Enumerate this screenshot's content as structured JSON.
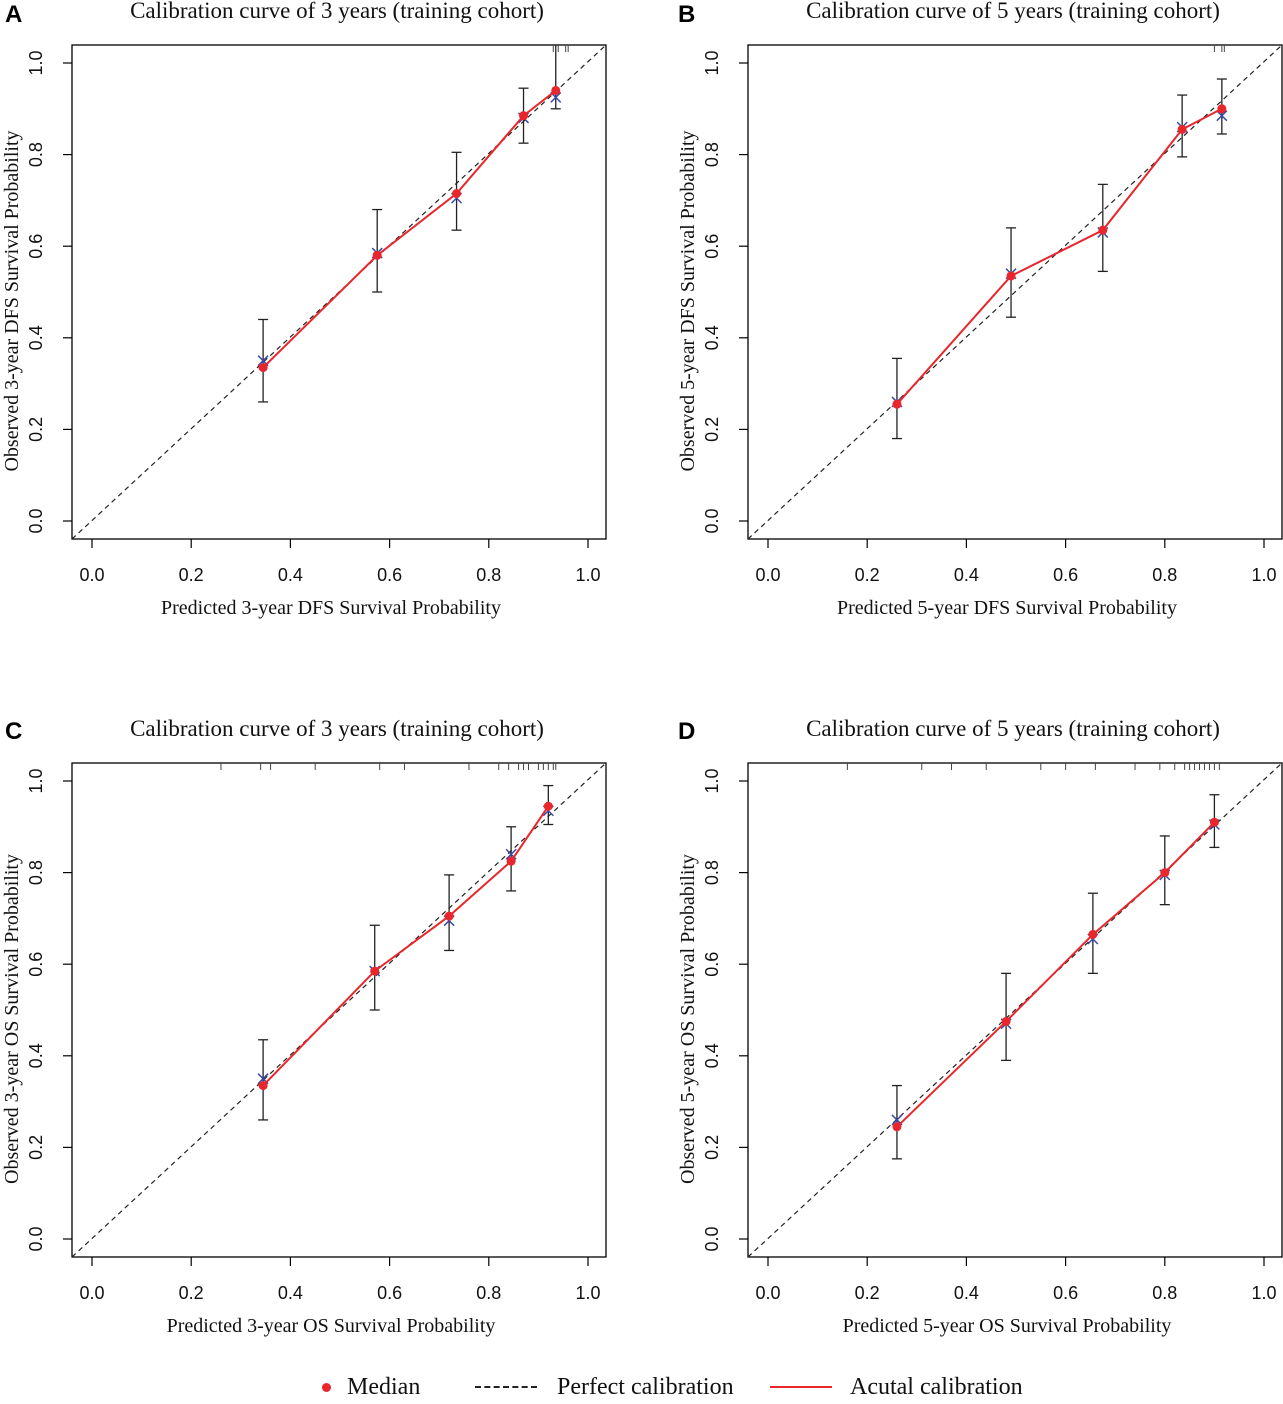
{
  "legend": {
    "median": "Median",
    "perfect": "Perfect calibration",
    "actual": "Acutal calibration"
  },
  "colors": {
    "actual": "#e8262b",
    "median": "#e8262b",
    "cross": "#3b4aa8",
    "perfect": "#222222",
    "errorbar": "#222222"
  },
  "chart_data": [
    {
      "panel": "A",
      "type": "scatter",
      "title": "Calibration curve of 3 years (training cohort)",
      "xlabel": "Predicted 3-year DFS Survival Probability",
      "ylabel": "Observed 3-year DFS Survival Probability",
      "xlim": [
        0,
        1
      ],
      "ylim": [
        0,
        1
      ],
      "xticks": [
        "0.0",
        "0.2",
        "0.4",
        "0.6",
        "0.8",
        "1.0"
      ],
      "yticks": [
        "0.0",
        "0.2",
        "0.4",
        "0.6",
        "0.8",
        "1.0"
      ],
      "series": [
        {
          "name": "Median",
          "x": [
            0.345,
            0.575,
            0.735,
            0.87,
            0.935
          ],
          "y": [
            0.335,
            0.58,
            0.715,
            0.885,
            0.94
          ]
        },
        {
          "name": "Observed (x)",
          "x": [
            0.345,
            0.575,
            0.735,
            0.87,
            0.935
          ],
          "y": [
            0.35,
            0.585,
            0.705,
            0.88,
            0.925
          ]
        },
        {
          "name": "Error bars",
          "low": [
            0.26,
            0.5,
            0.635,
            0.825,
            0.9
          ],
          "high": [
            0.44,
            0.68,
            0.805,
            0.945,
            1.05
          ]
        }
      ],
      "rug": [
        0.93,
        0.94,
        0.955,
        0.96
      ]
    },
    {
      "panel": "B",
      "type": "scatter",
      "title": "Calibration curve of 5 years (training cohort)",
      "xlabel": "Predicted 5-year DFS Survival Probability",
      "ylabel": "Observed 5-year DFS Survival Probability",
      "xlim": [
        0,
        1
      ],
      "ylim": [
        0,
        1
      ],
      "xticks": [
        "0.0",
        "0.2",
        "0.4",
        "0.6",
        "0.8",
        "1.0"
      ],
      "yticks": [
        "0.0",
        "0.2",
        "0.4",
        "0.6",
        "0.8",
        "1.0"
      ],
      "series": [
        {
          "name": "Median",
          "x": [
            0.26,
            0.49,
            0.675,
            0.835,
            0.915
          ],
          "y": [
            0.255,
            0.535,
            0.635,
            0.855,
            0.9
          ]
        },
        {
          "name": "Observed (x)",
          "x": [
            0.26,
            0.49,
            0.675,
            0.835,
            0.915
          ],
          "y": [
            0.26,
            0.54,
            0.63,
            0.86,
            0.885
          ]
        },
        {
          "name": "Error bars",
          "low": [
            0.18,
            0.445,
            0.545,
            0.795,
            0.845
          ],
          "high": [
            0.355,
            0.64,
            0.735,
            0.93,
            0.965
          ]
        }
      ],
      "rug": [
        0.9,
        0.915,
        0.92
      ]
    },
    {
      "panel": "C",
      "type": "scatter",
      "title": "Calibration curve of 3 years (training cohort)",
      "xlabel": "Predicted 3-year OS Survival Probability",
      "ylabel": "Observed 3-year OS Survival Probability",
      "xlim": [
        0,
        1
      ],
      "ylim": [
        0,
        1
      ],
      "xticks": [
        "0.0",
        "0.2",
        "0.4",
        "0.6",
        "0.8",
        "1.0"
      ],
      "yticks": [
        "0.0",
        "0.2",
        "0.4",
        "0.6",
        "0.8",
        "1.0"
      ],
      "series": [
        {
          "name": "Median",
          "x": [
            0.345,
            0.57,
            0.72,
            0.845,
            0.92
          ],
          "y": [
            0.335,
            0.585,
            0.705,
            0.825,
            0.945
          ]
        },
        {
          "name": "Observed (x)",
          "x": [
            0.345,
            0.57,
            0.72,
            0.845,
            0.92
          ],
          "y": [
            0.35,
            0.585,
            0.695,
            0.84,
            0.935
          ]
        },
        {
          "name": "Error bars",
          "low": [
            0.26,
            0.5,
            0.63,
            0.76,
            0.905
          ],
          "high": [
            0.435,
            0.685,
            0.795,
            0.9,
            0.99
          ]
        }
      ],
      "rug": [
        0.26,
        0.34,
        0.36,
        0.45,
        0.58,
        0.63,
        0.76,
        0.82,
        0.84,
        0.86,
        0.87,
        0.88,
        0.9,
        0.91,
        0.92,
        0.93,
        0.935
      ]
    },
    {
      "panel": "D",
      "type": "scatter",
      "title": "Calibration curve of 5 years (training cohort)",
      "xlabel": "Predicted 5-year OS Survival Probability",
      "ylabel": "Observed 5-year OS Survival Probability",
      "xlim": [
        0,
        1
      ],
      "ylim": [
        0,
        1
      ],
      "xticks": [
        "0.0",
        "0.2",
        "0.4",
        "0.6",
        "0.8",
        "1.0"
      ],
      "yticks": [
        "0.0",
        "0.2",
        "0.4",
        "0.6",
        "0.8",
        "1.0"
      ],
      "series": [
        {
          "name": "Median",
          "x": [
            0.26,
            0.48,
            0.655,
            0.8,
            0.9
          ],
          "y": [
            0.245,
            0.475,
            0.665,
            0.8,
            0.91
          ]
        },
        {
          "name": "Observed (x)",
          "x": [
            0.26,
            0.48,
            0.655,
            0.8,
            0.9
          ],
          "y": [
            0.26,
            0.47,
            0.655,
            0.795,
            0.905
          ]
        },
        {
          "name": "Error bars",
          "low": [
            0.175,
            0.39,
            0.58,
            0.73,
            0.855
          ],
          "high": [
            0.335,
            0.58,
            0.755,
            0.88,
            0.97
          ]
        }
      ],
      "rug": [
        0.16,
        0.31,
        0.37,
        0.44,
        0.55,
        0.6,
        0.66,
        0.74,
        0.79,
        0.82,
        0.84,
        0.85,
        0.86,
        0.87,
        0.88,
        0.89,
        0.9,
        0.91
      ]
    }
  ]
}
